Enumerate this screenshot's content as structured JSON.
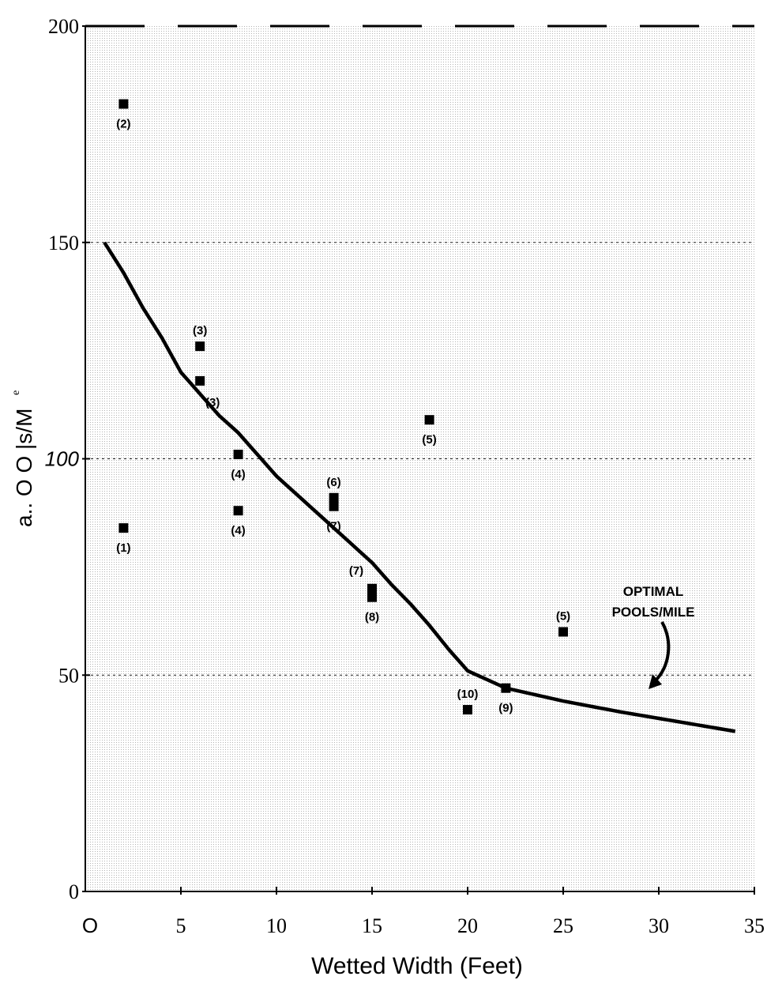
{
  "chart_data": {
    "type": "scatter",
    "xlabel": "Wetted Width (Feet)",
    "ylabel": "a.. O O |s/M",
    "ylabel_superscript": "e",
    "xlim": [
      0,
      35
    ],
    "ylim": [
      0,
      200
    ],
    "x_ticks": [
      {
        "value": 0,
        "label": "O"
      },
      {
        "value": 5,
        "label": "5"
      },
      {
        "value": 10,
        "label": "10"
      },
      {
        "value": 15,
        "label": "15"
      },
      {
        "value": 20,
        "label": "20"
      },
      {
        "value": 25,
        "label": "25"
      },
      {
        "value": 30,
        "label": "30"
      },
      {
        "value": 35,
        "label": "35"
      }
    ],
    "y_ticks": [
      {
        "value": 0,
        "label": "0"
      },
      {
        "value": 50,
        "label": "50"
      },
      {
        "value": 100,
        "label": "100"
      },
      {
        "value": 150,
        "label": "150"
      },
      {
        "value": 200,
        "label": "200"
      }
    ],
    "grid": "dotted",
    "hlines": [
      50,
      100,
      150
    ],
    "curve": {
      "name": "OPTIMAL POOLS/MILE",
      "x": [
        1,
        2,
        3,
        4,
        5,
        6,
        7,
        8,
        9,
        10,
        11,
        12,
        13,
        14,
        15,
        16,
        17,
        18,
        19,
        20,
        22,
        25,
        28,
        30,
        32,
        34
      ],
      "y": [
        150,
        143,
        135,
        128,
        120,
        115,
        110,
        106,
        101,
        96,
        92,
        88,
        84,
        80,
        76,
        71,
        66.5,
        61.5,
        56,
        51,
        47,
        44,
        41.5,
        40,
        38.5,
        37
      ]
    },
    "points": [
      {
        "x": 2,
        "y": 182,
        "label": "(2)",
        "label_pos": "below"
      },
      {
        "x": 2,
        "y": 84,
        "label": "(1)",
        "label_pos": "below"
      },
      {
        "x": 6,
        "y": 126,
        "label": "(3)",
        "label_pos": "above"
      },
      {
        "x": 6,
        "y": 118,
        "label": "(3)",
        "label_pos": "below-right"
      },
      {
        "x": 8,
        "y": 101,
        "label": "(4)",
        "label_pos": "below"
      },
      {
        "x": 8,
        "y": 88,
        "label": "(4)",
        "label_pos": "below"
      },
      {
        "x": 13,
        "y": 91,
        "label": "(6)",
        "label_pos": "above"
      },
      {
        "x": 13,
        "y": 89,
        "label": "(7)",
        "label_pos": "below"
      },
      {
        "x": 15,
        "y": 70,
        "label": "(7)",
        "label_pos": "above-left"
      },
      {
        "x": 15,
        "y": 68,
        "label": "(8)",
        "label_pos": "below"
      },
      {
        "x": 18,
        "y": 109,
        "label": "(5)",
        "label_pos": "below"
      },
      {
        "x": 20,
        "y": 42,
        "label": "(10)",
        "label_pos": "above"
      },
      {
        "x": 22,
        "y": 47,
        "label": "(9)",
        "label_pos": "below"
      },
      {
        "x": 25,
        "y": 60,
        "label": "(5)",
        "label_pos": "above"
      }
    ],
    "annotation": {
      "line1": "OPTIMAL",
      "line2": "POOLS/MILE"
    },
    "colors": {
      "marker": "#000000",
      "curve": "#000000",
      "grid": "#9a9a9a"
    }
  }
}
